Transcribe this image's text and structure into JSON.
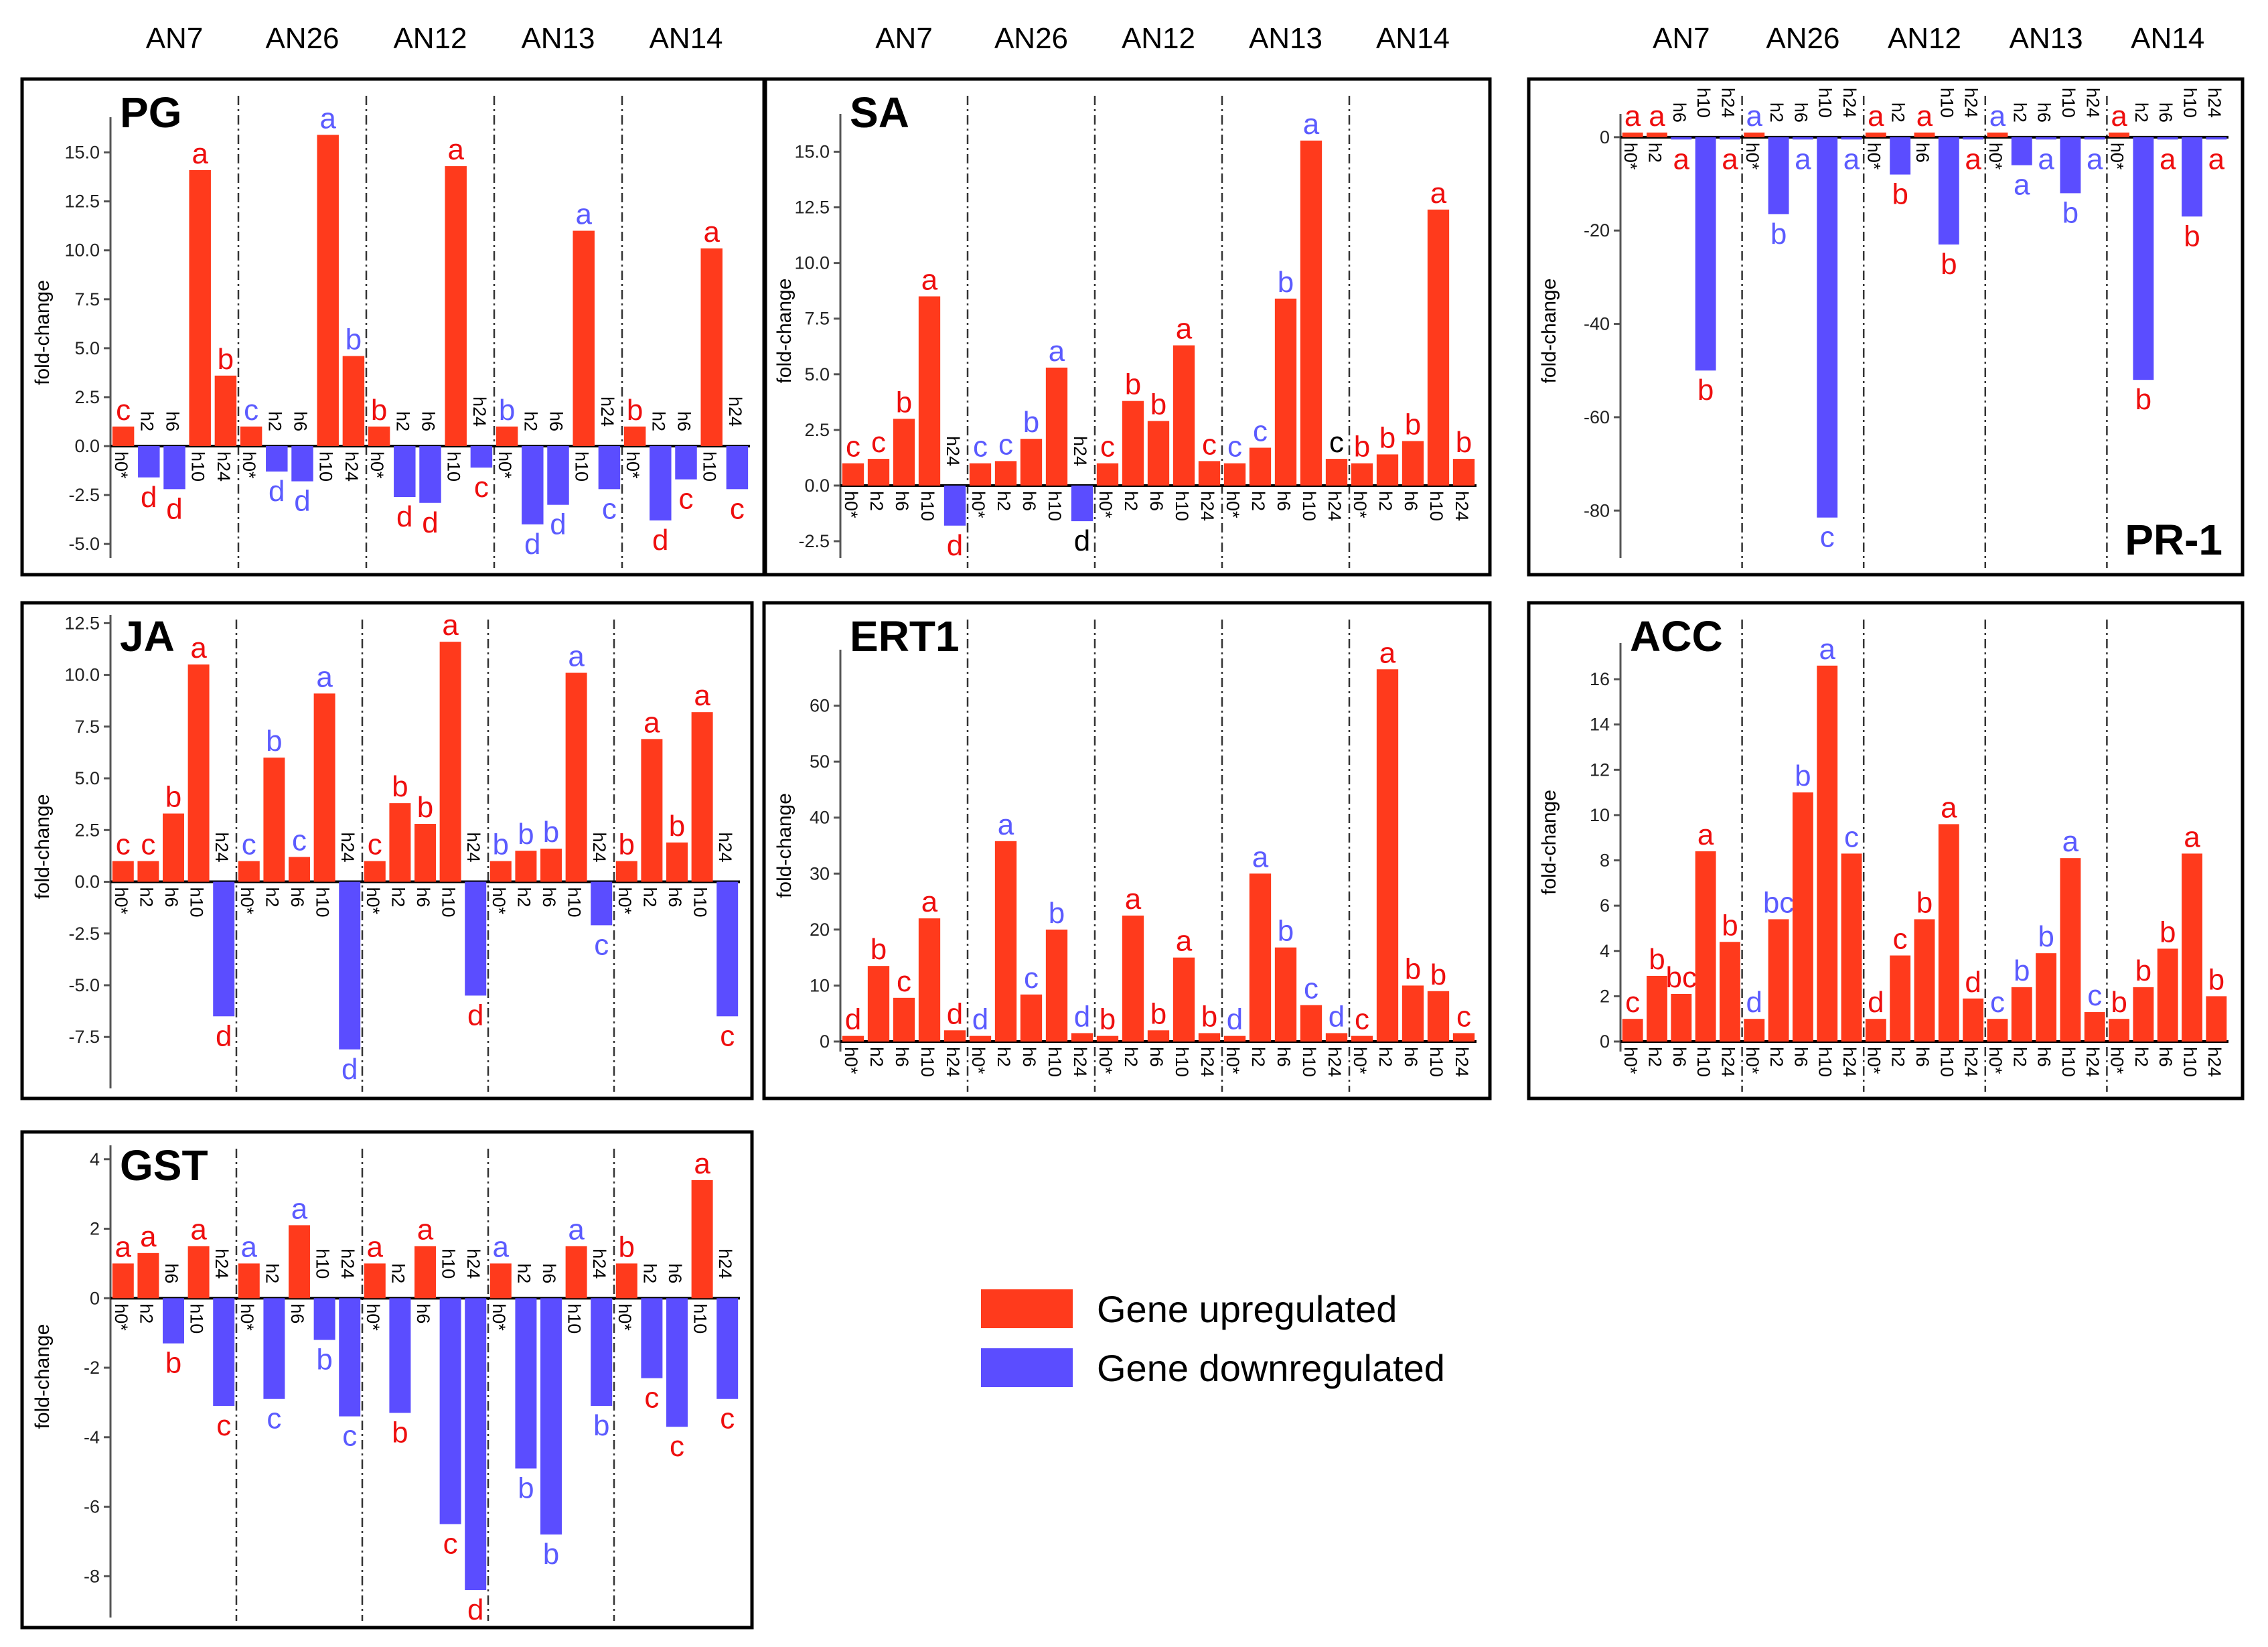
{
  "colors": {
    "up": "#ff3a1c",
    "down": "#5b4dff",
    "letter_up": "#ee0e0e",
    "letter_down": "#5b5bff",
    "letter_black": "#000000",
    "frame": "#000000"
  },
  "group_labels": [
    "AN7",
    "AN26",
    "AN12",
    "AN13",
    "AN14"
  ],
  "times": [
    "h0*",
    "h2",
    "h6",
    "h10",
    "h24"
  ],
  "y_label": "fold-change",
  "legend": [
    {
      "label": "Gene upregulated",
      "color": "#ff3a1c"
    },
    {
      "label": "Gene downregulated",
      "color": "#5b4dff"
    }
  ],
  "chart_data": [
    {
      "type": "bar",
      "title": "PG",
      "ylabel": "fold-change",
      "ylim": [
        -5.2,
        16.8
      ],
      "ticks": [
        -5.0,
        -2.5,
        0.0,
        2.5,
        5.0,
        7.5,
        10.0,
        12.5,
        15.0
      ],
      "tick_labels": [
        "-5.0",
        "-2.5",
        "0.0",
        "2.5",
        "5.0",
        "7.5",
        "10.0",
        "12.5",
        "15.0"
      ],
      "groups": [
        "AN7",
        "AN26",
        "AN12",
        "AN13",
        "AN14"
      ],
      "x": [
        "h0*",
        "h2",
        "h6",
        "h10",
        "h24"
      ],
      "values": [
        [
          1,
          -1.6,
          -2.2,
          14.1,
          3.6
        ],
        [
          1,
          -1.3,
          -1.8,
          15.9,
          4.6
        ],
        [
          1,
          -2.6,
          -2.9,
          14.3,
          -1.1
        ],
        [
          1,
          -4,
          -3,
          11,
          -2.2
        ],
        [
          1,
          -3.8,
          -1.7,
          10.1,
          -2.2
        ]
      ],
      "letters": [
        [
          "c",
          "d",
          "d",
          "a",
          "b"
        ],
        [
          "c",
          "d",
          "d",
          "a",
          "b"
        ],
        [
          "b",
          "d",
          "d",
          "a",
          "c"
        ],
        [
          "b",
          "d",
          "d",
          "a",
          "c"
        ],
        [
          "b",
          "d",
          "c",
          "a",
          "c"
        ]
      ],
      "letter_colors": [
        [
          "r",
          "r",
          "r",
          "r",
          "r"
        ],
        [
          "b",
          "b",
          "b",
          "b",
          "b"
        ],
        [
          "r",
          "r",
          "r",
          "r",
          "r"
        ],
        [
          "b",
          "b",
          "b",
          "b",
          "b"
        ],
        [
          "r",
          "r",
          "r",
          "r",
          "r"
        ]
      ]
    },
    {
      "type": "bar",
      "title": "SA",
      "ylabel": "fold-change",
      "ylim": [
        -2.8,
        16.7
      ],
      "ticks": [
        -2.5,
        0.0,
        2.5,
        5.0,
        7.5,
        10.0,
        12.5,
        15.0
      ],
      "tick_labels": [
        "-2.5",
        "0.0",
        "2.5",
        "5.0",
        "7.5",
        "10.0",
        "12.5",
        "15.0"
      ],
      "groups": [
        "AN7",
        "AN26",
        "AN12",
        "AN13",
        "AN14"
      ],
      "x": [
        "h0*",
        "h2",
        "h6",
        "h10",
        "h24"
      ],
      "values": [
        [
          1,
          1.2,
          3,
          8.5,
          -1.8
        ],
        [
          1,
          1.1,
          2.1,
          5.3,
          -1.6
        ],
        [
          1,
          3.8,
          2.9,
          6.3,
          1.1
        ],
        [
          1,
          1.7,
          8.4,
          15.5,
          1.2
        ],
        [
          1,
          1.4,
          2,
          12.4,
          1.2
        ]
      ],
      "letters": [
        [
          "c",
          "c",
          "b",
          "a",
          "d"
        ],
        [
          "c",
          "c",
          "b",
          "a",
          "d"
        ],
        [
          "c",
          "b",
          "b",
          "a",
          "c"
        ],
        [
          "c",
          "c",
          "b",
          "a",
          "c"
        ],
        [
          "b",
          "b",
          "b",
          "a",
          "b"
        ]
      ],
      "letter_colors": [
        [
          "r",
          "r",
          "r",
          "r",
          "r"
        ],
        [
          "b",
          "b",
          "b",
          "b",
          "k"
        ],
        [
          "r",
          "r",
          "r",
          "r",
          "r"
        ],
        [
          "b",
          "b",
          "b",
          "b",
          "k"
        ],
        [
          "r",
          "r",
          "r",
          "r",
          "r"
        ]
      ]
    },
    {
      "type": "bar",
      "title": "PR-1",
      "ylabel": "fold-change",
      "ylim": [
        -88,
        5
      ],
      "ticks": [
        -80,
        -60,
        -40,
        -20,
        0
      ],
      "tick_labels": [
        "-80",
        "-60",
        "-40",
        "-20",
        "0"
      ],
      "groups": [
        "AN7",
        "AN26",
        "AN12",
        "AN13",
        "AN14"
      ],
      "x": [
        "h0*",
        "h2",
        "h6",
        "h10",
        "h24"
      ],
      "values": [
        [
          1,
          1,
          -0.5,
          -50,
          -0.5
        ],
        [
          1,
          -16.5,
          -0.5,
          -81.5,
          -0.5
        ],
        [
          1,
          -8,
          1,
          -23,
          -0.5
        ],
        [
          1,
          -6,
          -0.5,
          -12,
          -0.5
        ],
        [
          1,
          -52,
          -0.5,
          -17,
          -0.5
        ]
      ],
      "letters": [
        [
          "a",
          "a",
          "a",
          "b",
          "a"
        ],
        [
          "a",
          "b",
          "a",
          "c",
          "a"
        ],
        [
          "a",
          "b",
          "a",
          "b",
          "a"
        ],
        [
          "a",
          "a",
          "a",
          "b",
          "a"
        ],
        [
          "a",
          "b",
          "a",
          "b",
          "a"
        ]
      ],
      "letter_colors": [
        [
          "r",
          "r",
          "r",
          "r",
          "r"
        ],
        [
          "b",
          "b",
          "b",
          "b",
          "b"
        ],
        [
          "r",
          "r",
          "r",
          "r",
          "r"
        ],
        [
          "b",
          "b",
          "b",
          "b",
          "b"
        ],
        [
          "r",
          "r",
          "r",
          "r",
          "r"
        ]
      ]
    },
    {
      "type": "bar",
      "title": "JA",
      "ylabel": "fold-change",
      "ylim": [
        -9.5,
        12.9
      ],
      "ticks": [
        -7.5,
        -5.0,
        -2.5,
        0.0,
        2.5,
        5.0,
        7.5,
        10.0,
        12.5
      ],
      "tick_labels": [
        "-7.5",
        "-5.0",
        "-2.5",
        "0.0",
        "2.5",
        "5.0",
        "7.5",
        "10.0",
        "12.5"
      ],
      "groups": [
        "AN7",
        "AN26",
        "AN12",
        "AN13",
        "AN14"
      ],
      "x": [
        "h0*",
        "h2",
        "h6",
        "h10",
        "h24"
      ],
      "values": [
        [
          1,
          1,
          3.3,
          10.5,
          -6.5
        ],
        [
          1,
          6,
          1.2,
          9.1,
          -8.1
        ],
        [
          1,
          3.8,
          2.8,
          11.6,
          -5.5
        ],
        [
          1,
          1.5,
          1.6,
          10.1,
          -2.1
        ],
        [
          1,
          6.9,
          1.9,
          8.2,
          -6.5
        ]
      ],
      "letters": [
        [
          "c",
          "c",
          "b",
          "a",
          "d"
        ],
        [
          "c",
          "b",
          "c",
          "a",
          "d"
        ],
        [
          "c",
          "b",
          "b",
          "a",
          "d"
        ],
        [
          "b",
          "b",
          "b",
          "a",
          "c"
        ],
        [
          "b",
          "a",
          "b",
          "a",
          "c"
        ]
      ],
      "letter_colors": [
        [
          "r",
          "r",
          "r",
          "r",
          "r"
        ],
        [
          "b",
          "b",
          "b",
          "b",
          "b"
        ],
        [
          "r",
          "r",
          "r",
          "r",
          "r"
        ],
        [
          "b",
          "b",
          "b",
          "b",
          "b"
        ],
        [
          "r",
          "r",
          "r",
          "r",
          "r"
        ]
      ]
    },
    {
      "type": "bar",
      "title": "ERT1",
      "ylabel": "fold-change",
      "ylim": [
        0,
        70
      ],
      "ticks": [
        0,
        10,
        20,
        30,
        40,
        50,
        60
      ],
      "tick_labels": [
        "0",
        "10",
        "20",
        "30",
        "40",
        "50",
        "60"
      ],
      "groups": [
        "AN7",
        "AN26",
        "AN12",
        "AN13",
        "AN14"
      ],
      "x": [
        "h0*",
        "h2",
        "h6",
        "h10",
        "h24"
      ],
      "values": [
        [
          1,
          13.5,
          7.8,
          22,
          2
        ],
        [
          1,
          35.8,
          8.4,
          20,
          1.5
        ],
        [
          1,
          22.5,
          2,
          15,
          1.5
        ],
        [
          1,
          30,
          16.8,
          6.5,
          1.5
        ],
        [
          1,
          66.5,
          10,
          9,
          1.5
        ]
      ],
      "letters": [
        [
          "d",
          "b",
          "c",
          "a",
          "d"
        ],
        [
          "d",
          "a",
          "c",
          "b",
          "d"
        ],
        [
          "b",
          "a",
          "b",
          "a",
          "b"
        ],
        [
          "d",
          "a",
          "b",
          "c",
          "d"
        ],
        [
          "c",
          "a",
          "b",
          "b",
          "c"
        ]
      ],
      "letter_colors": [
        [
          "r",
          "r",
          "r",
          "r",
          "r"
        ],
        [
          "b",
          "b",
          "b",
          "b",
          "b"
        ],
        [
          "r",
          "r",
          "r",
          "r",
          "r"
        ],
        [
          "b",
          "b",
          "b",
          "b",
          "b"
        ],
        [
          "r",
          "r",
          "r",
          "r",
          "r"
        ]
      ]
    },
    {
      "type": "bar",
      "title": "ACC",
      "ylabel": "fold-change",
      "ylim": [
        0,
        17.6
      ],
      "ticks": [
        0,
        2,
        4,
        6,
        8,
        10,
        12,
        14,
        16
      ],
      "tick_labels": [
        "0",
        "2",
        "4",
        "6",
        "8",
        "10",
        "12",
        "14",
        "16"
      ],
      "groups": [
        "AN7",
        "AN26",
        "AN12",
        "AN13",
        "AN14"
      ],
      "x": [
        "h0*",
        "h2",
        "h6",
        "h10",
        "h24"
      ],
      "values": [
        [
          1,
          2.9,
          2.1,
          8.4,
          4.4
        ],
        [
          1,
          5.4,
          11,
          16.6,
          8.3
        ],
        [
          1,
          3.8,
          5.4,
          9.6,
          1.9
        ],
        [
          1,
          2.4,
          3.9,
          8.1,
          1.3
        ],
        [
          1,
          2.4,
          4.1,
          8.3,
          2
        ]
      ],
      "letters": [
        [
          "c",
          "b",
          "bc",
          "a",
          "b"
        ],
        [
          "d",
          "bc",
          "b",
          "a",
          "c"
        ],
        [
          "d",
          "c",
          "b",
          "a",
          "d"
        ],
        [
          "c",
          "b",
          "b",
          "a",
          "c"
        ],
        [
          "b",
          "b",
          "b",
          "a",
          "b"
        ]
      ],
      "letter_colors": [
        [
          "r",
          "r",
          "r",
          "r",
          "r"
        ],
        [
          "b",
          "b",
          "b",
          "b",
          "b"
        ],
        [
          "r",
          "r",
          "r",
          "r",
          "r"
        ],
        [
          "b",
          "b",
          "b",
          "b",
          "b"
        ],
        [
          "r",
          "r",
          "r",
          "r",
          "r"
        ]
      ]
    },
    {
      "type": "bar",
      "title": "GST",
      "ylabel": "fold-change",
      "ylim": [
        -8.9,
        4.4
      ],
      "ticks": [
        -8,
        -6,
        -4,
        -2,
        0,
        2,
        4
      ],
      "tick_labels": [
        "-8",
        "-6",
        "-4",
        "-2",
        "0",
        "2",
        "4"
      ],
      "groups": [
        "AN7",
        "AN26",
        "AN12",
        "AN13",
        "AN14"
      ],
      "x": [
        "h0*",
        "h2",
        "h6",
        "h10",
        "h24"
      ],
      "values": [
        [
          1,
          1.3,
          -1.3,
          1.5,
          -3.1
        ],
        [
          1,
          -2.9,
          2.1,
          -1.2,
          -3.4
        ],
        [
          1,
          -3.3,
          1.5,
          -6.5,
          -8.4
        ],
        [
          1,
          -4.9,
          -6.8,
          1.5,
          -3.1
        ],
        [
          1,
          -2.3,
          -3.7,
          3.4,
          -2.9
        ]
      ],
      "letters": [
        [
          "a",
          "a",
          "b",
          "a",
          "c"
        ],
        [
          "a",
          "c",
          "a",
          "b",
          "c"
        ],
        [
          "a",
          "b",
          "a",
          "c",
          "d"
        ],
        [
          "a",
          "b",
          "b",
          "a",
          "b"
        ],
        [
          "b",
          "c",
          "c",
          "a",
          "c"
        ]
      ],
      "letter_colors": [
        [
          "r",
          "r",
          "r",
          "r",
          "r"
        ],
        [
          "b",
          "b",
          "b",
          "b",
          "b"
        ],
        [
          "r",
          "r",
          "r",
          "r",
          "r"
        ],
        [
          "b",
          "b",
          "b",
          "b",
          "b"
        ],
        [
          "r",
          "r",
          "r",
          "r",
          "r"
        ]
      ]
    }
  ]
}
